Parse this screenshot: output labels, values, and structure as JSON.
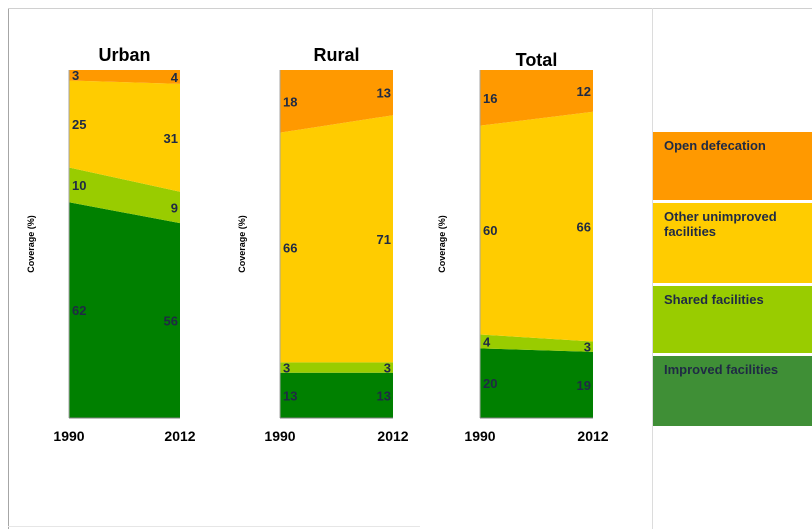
{
  "chart_data": [
    {
      "type": "area",
      "title": "Urban",
      "ylabel": "Coverage (%)",
      "categories": [
        "1990",
        "2012"
      ],
      "ylim": [
        0,
        100
      ],
      "series": [
        {
          "name": "Improved facilities",
          "values": [
            62,
            56
          ]
        },
        {
          "name": "Shared facilities",
          "values": [
            10,
            9
          ]
        },
        {
          "name": "Other unimproved facilities",
          "values": [
            25,
            31
          ]
        },
        {
          "name": "Open defecation",
          "values": [
            3,
            4
          ]
        }
      ]
    },
    {
      "type": "area",
      "title": "Rural",
      "ylabel": "Coverage (%)",
      "categories": [
        "1990",
        "2012"
      ],
      "ylim": [
        0,
        100
      ],
      "series": [
        {
          "name": "Improved facilities",
          "values": [
            13,
            13
          ]
        },
        {
          "name": "Shared facilities",
          "values": [
            3,
            3
          ]
        },
        {
          "name": "Other unimproved facilities",
          "values": [
            66,
            71
          ]
        },
        {
          "name": "Open defecation",
          "values": [
            18,
            13
          ]
        }
      ]
    },
    {
      "type": "area",
      "title": "Total",
      "ylabel": "Coverage (%)",
      "categories": [
        "1990",
        "2012"
      ],
      "ylim": [
        0,
        100
      ],
      "series": [
        {
          "name": "Improved facilities",
          "values": [
            20,
            19
          ]
        },
        {
          "name": "Shared facilities",
          "values": [
            4,
            3
          ]
        },
        {
          "name": "Other unimproved facilities",
          "values": [
            60,
            66
          ]
        },
        {
          "name": "Open defecation",
          "values": [
            16,
            12
          ]
        }
      ]
    }
  ],
  "legend": {
    "placement": "right",
    "items": [
      {
        "label": "Open defecation",
        "color": "#ff9900"
      },
      {
        "label": "Other unimproved facilities",
        "color": "#ffcc00"
      },
      {
        "label": "Shared facilities",
        "color": "#99cc00"
      },
      {
        "label": "Improved facilities",
        "color": "#3f8f36"
      }
    ]
  },
  "colors": {
    "Improved facilities": "#008000",
    "Shared facilities": "#99cc00",
    "Other unimproved facilities": "#ffcc00",
    "Open defecation": "#ff9900",
    "label_text": "#1f2a44"
  }
}
